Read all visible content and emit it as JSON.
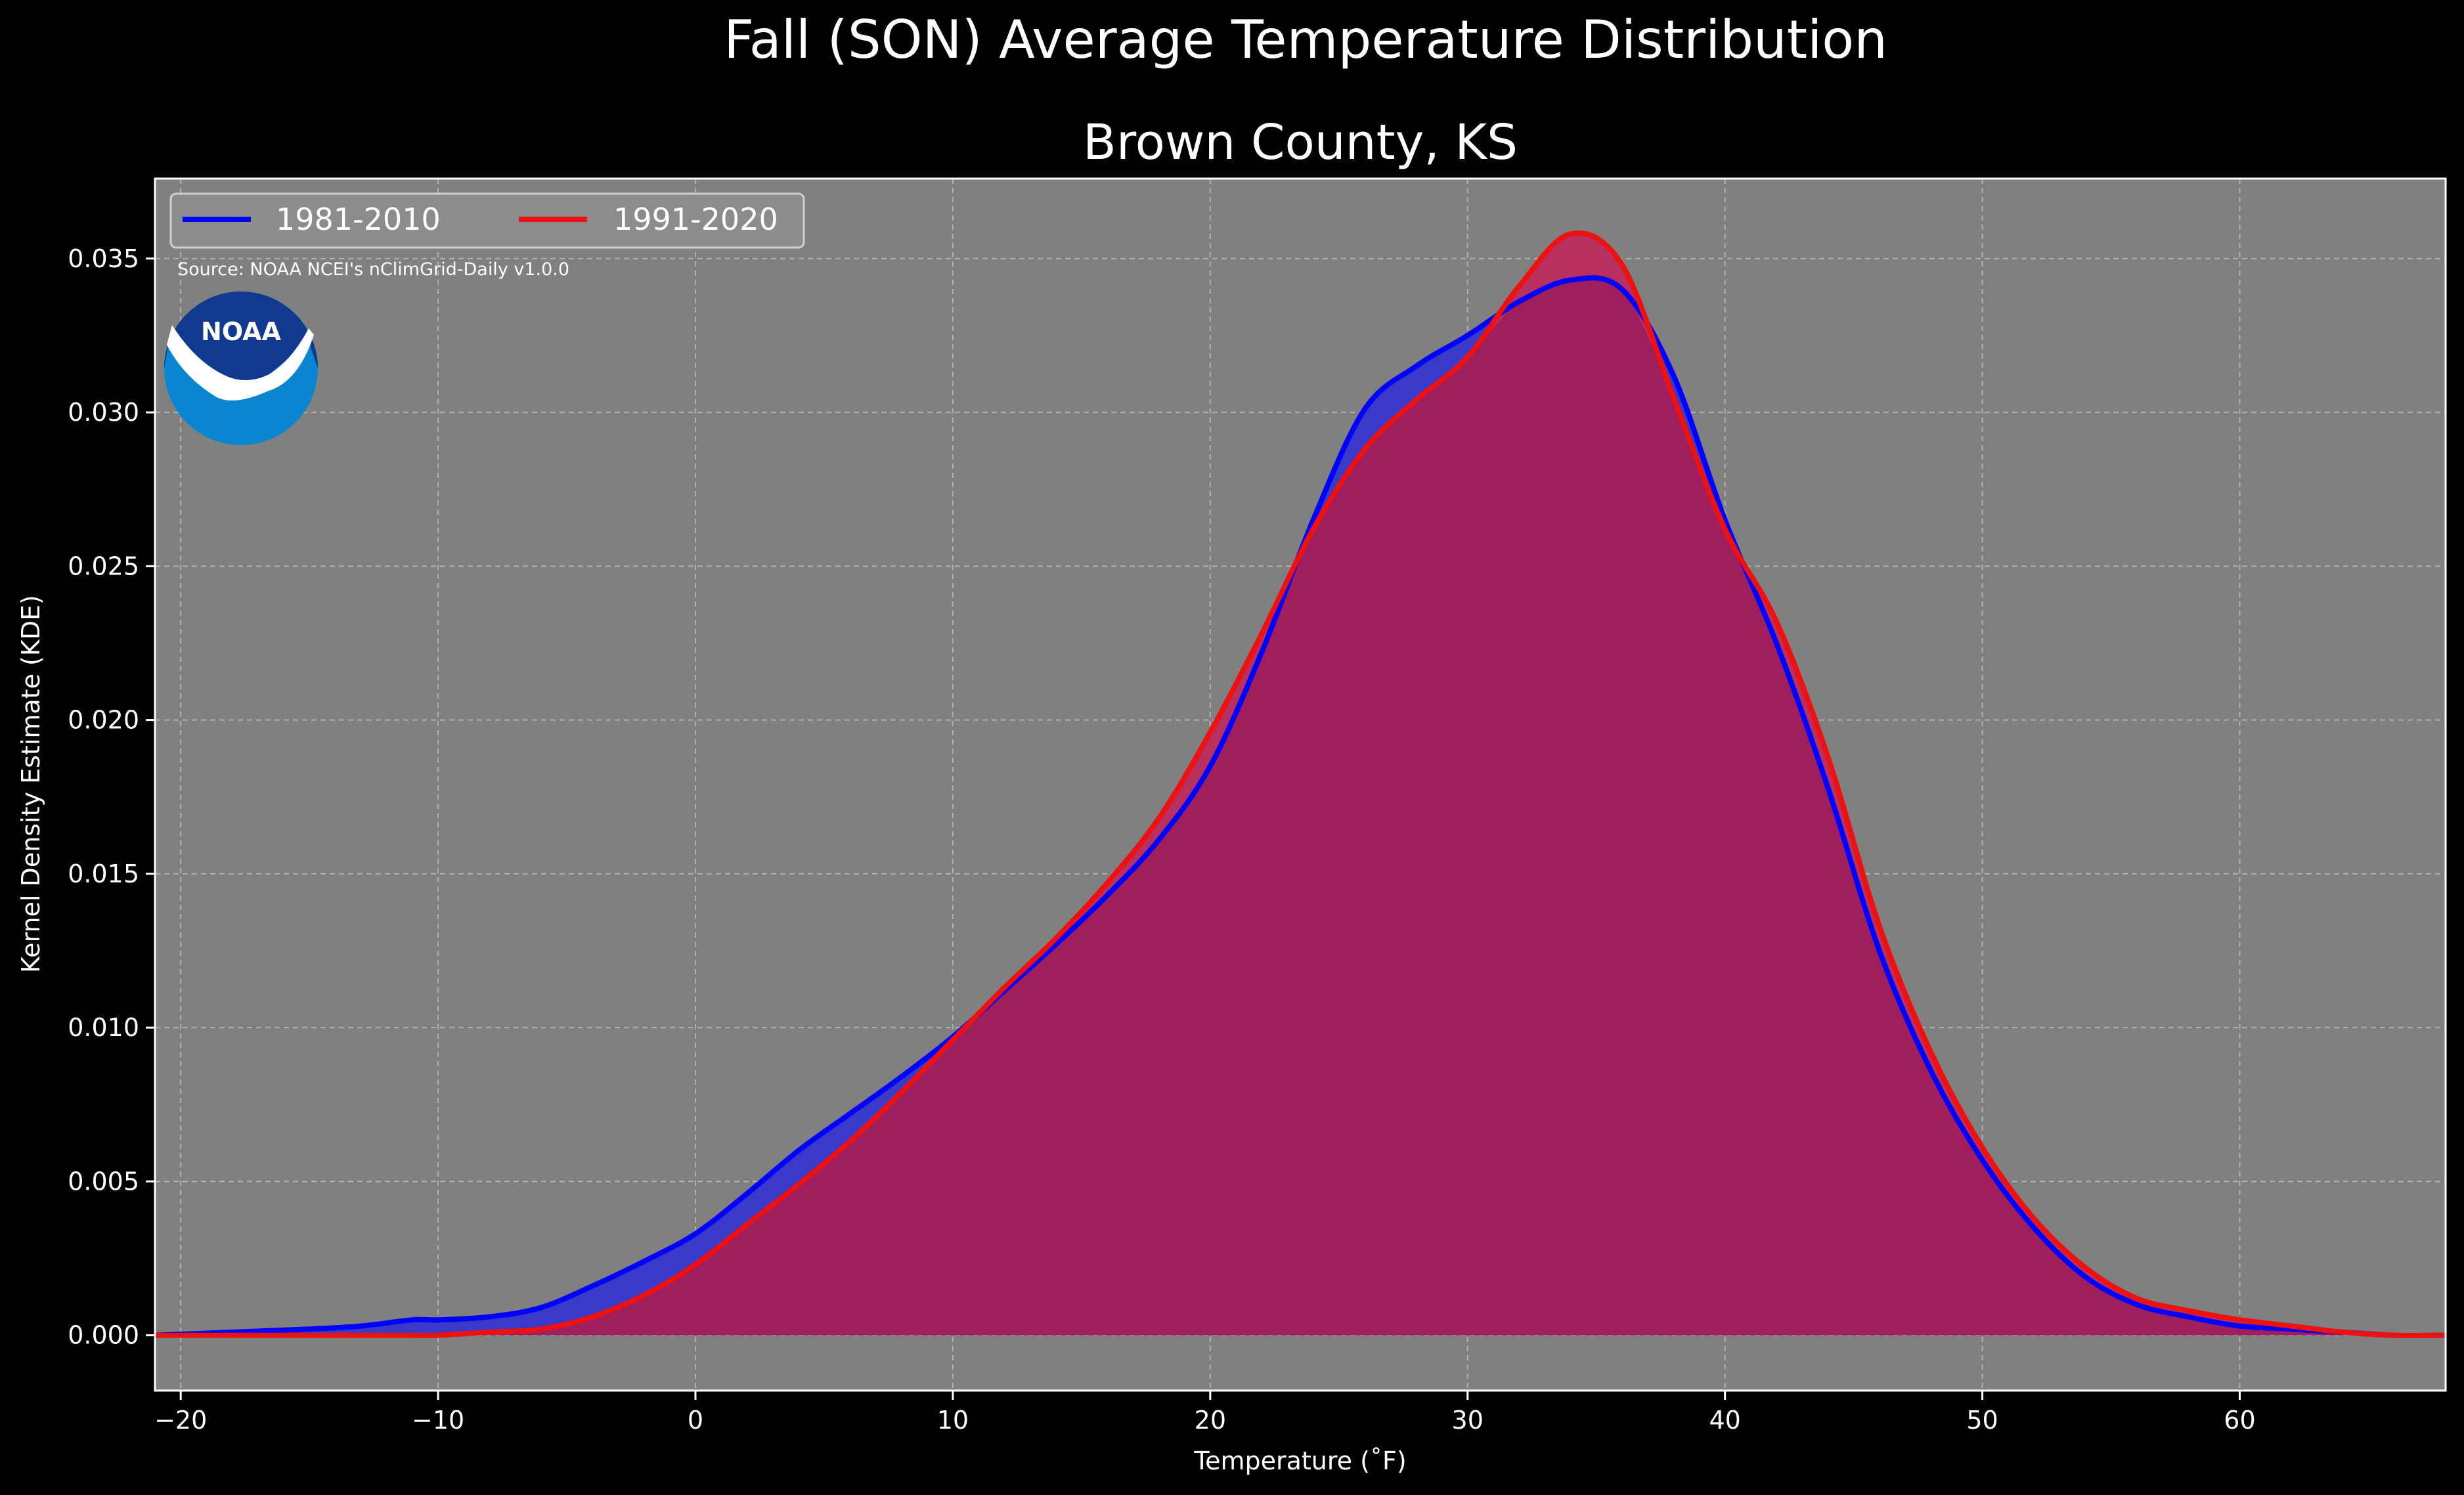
{
  "chart_data": {
    "type": "area",
    "title": "Fall (SON) Average Temperature Distribution",
    "subtitle": "Brown County, KS",
    "xlabel": "Temperature (˚F)",
    "ylabel": "Kernel Density Estimate (KDE)",
    "xlim": [
      -21,
      68
    ],
    "ylim": [
      -0.0018,
      0.0376
    ],
    "x_ticks": [
      -20,
      -10,
      0,
      10,
      20,
      30,
      40,
      50,
      60
    ],
    "x_tick_labels": [
      "−20",
      "−10",
      "0",
      "10",
      "20",
      "30",
      "40",
      "50",
      "60"
    ],
    "y_ticks": [
      0.0,
      0.005,
      0.01,
      0.015,
      0.02,
      0.025,
      0.03,
      0.035
    ],
    "y_tick_labels": [
      "0.000",
      "0.005",
      "0.010",
      "0.015",
      "0.020",
      "0.025",
      "0.030",
      "0.035"
    ],
    "grid": true,
    "legend_position": "top-left",
    "source_note": "Source: NOAA NCEI's nClimGrid-Daily v1.0.0",
    "logo_text": "NOAA",
    "colors": {
      "background": "#000000",
      "plot_background": "#808080",
      "overlap_fill": "#9e1e5e"
    },
    "series": [
      {
        "name": "1981-2010",
        "color": "#0000ff",
        "fill": "#3a3ac8",
        "x": [
          -21,
          -18,
          -15,
          -13,
          -11,
          -10,
          -8,
          -6,
          -4,
          -2,
          0,
          2,
          4,
          6,
          8,
          10,
          12,
          14,
          16,
          18,
          20,
          22,
          24,
          26,
          28,
          30,
          32,
          34,
          36,
          38,
          40,
          42,
          44,
          46,
          48,
          50,
          52,
          54,
          56,
          58,
          60,
          62,
          64,
          66,
          68
        ],
        "y": [
          0.0,
          0.0001,
          0.0002,
          0.0003,
          0.0005,
          0.0005,
          0.0006,
          0.0009,
          0.0016,
          0.0024,
          0.0033,
          0.0046,
          0.006,
          0.0072,
          0.0084,
          0.0097,
          0.0112,
          0.0127,
          0.0143,
          0.0161,
          0.0185,
          0.0222,
          0.0265,
          0.0301,
          0.0315,
          0.0325,
          0.0336,
          0.0343,
          0.034,
          0.0312,
          0.0265,
          0.0225,
          0.0178,
          0.0125,
          0.0086,
          0.0057,
          0.0035,
          0.0019,
          0.001,
          0.0006,
          0.0003,
          0.0002,
          0.0001,
          0.0,
          0.0
        ]
      },
      {
        "name": "1991-2020",
        "color": "#ee1111",
        "fill": "#b83060",
        "x": [
          -21,
          -18,
          -15,
          -13,
          -11,
          -10,
          -8,
          -6,
          -4,
          -2,
          0,
          2,
          4,
          6,
          8,
          10,
          12,
          14,
          16,
          18,
          20,
          22,
          24,
          26,
          28,
          30,
          32,
          34,
          36,
          38,
          40,
          42,
          44,
          46,
          48,
          50,
          52,
          54,
          56,
          58,
          60,
          62,
          64,
          66,
          68
        ],
        "y": [
          0.0,
          0.0,
          0.0,
          0.0,
          0.0,
          0.0,
          0.0001,
          0.0002,
          0.0006,
          0.0013,
          0.0023,
          0.0036,
          0.0049,
          0.0063,
          0.0079,
          0.0096,
          0.0113,
          0.0129,
          0.0147,
          0.0168,
          0.0196,
          0.0228,
          0.0262,
          0.0288,
          0.0304,
          0.0318,
          0.0341,
          0.0358,
          0.0348,
          0.0305,
          0.0262,
          0.0232,
          0.0188,
          0.0133,
          0.0092,
          0.0061,
          0.0038,
          0.0022,
          0.0012,
          0.0008,
          0.0005,
          0.0003,
          0.0001,
          0.0,
          0.0
        ]
      }
    ]
  }
}
